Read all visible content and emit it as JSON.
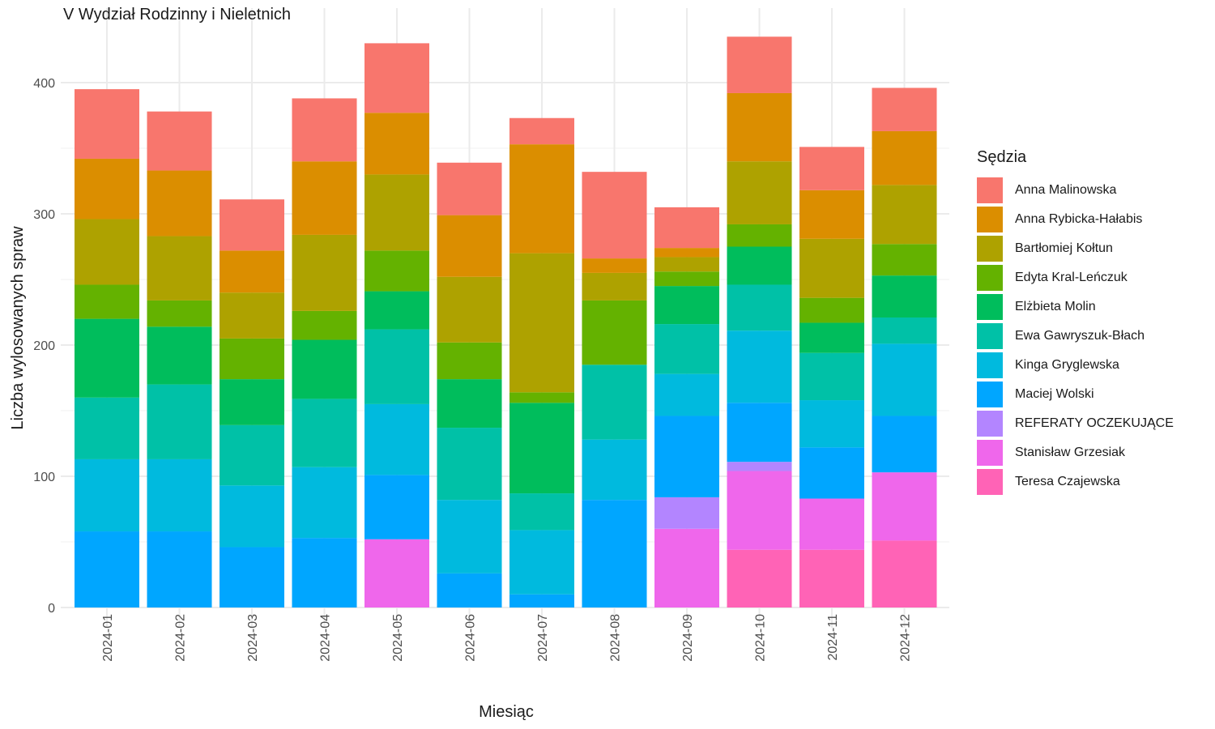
{
  "chart_data": {
    "type": "bar",
    "stacked": true,
    "title": "V Wydział Rodzinny i Nieletnich",
    "xlabel": "Miesiąc",
    "ylabel": "Liczba wylosowanych spraw",
    "ylim": [
      0,
      435
    ],
    "yticks": [
      0,
      100,
      200,
      300,
      400
    ],
    "grid": true,
    "legend_title": "Sędzia",
    "legend_position": "right",
    "categories": [
      "2024-01",
      "2024-02",
      "2024-03",
      "2024-04",
      "2024-05",
      "2024-06",
      "2024-07",
      "2024-08",
      "2024-09",
      "2024-10",
      "2024-11",
      "2024-12"
    ],
    "series": [
      {
        "name": "Anna Malinowska",
        "color": "#F8766D",
        "values": [
          53,
          45,
          39,
          48,
          53,
          40,
          20,
          66,
          31,
          43,
          33,
          33
        ]
      },
      {
        "name": "Anna Rybicka-Hałabis",
        "color": "#DB8E00",
        "values": [
          46,
          50,
          32,
          56,
          47,
          47,
          83,
          11,
          7,
          52,
          37,
          41
        ]
      },
      {
        "name": "Bartłomiej Kołtun",
        "color": "#AEA200",
        "values": [
          50,
          49,
          35,
          58,
          58,
          50,
          106,
          21,
          11,
          48,
          45,
          45
        ]
      },
      {
        "name": "Edyta Kral-Leńczuk",
        "color": "#64B200",
        "values": [
          26,
          20,
          31,
          22,
          31,
          28,
          8,
          49,
          11,
          17,
          19,
          24
        ]
      },
      {
        "name": "Elżbieta Molin",
        "color": "#00BD5C",
        "values": [
          60,
          44,
          35,
          45,
          29,
          37,
          69,
          0,
          29,
          29,
          23,
          32
        ]
      },
      {
        "name": "Ewa Gawryszuk-Błach",
        "color": "#00C1A7",
        "values": [
          47,
          57,
          46,
          52,
          57,
          55,
          28,
          57,
          38,
          35,
          36,
          20
        ]
      },
      {
        "name": "Kinga Gryglewska",
        "color": "#00BADE",
        "values": [
          55,
          55,
          47,
          54,
          54,
          56,
          49,
          46,
          32,
          55,
          36,
          55
        ]
      },
      {
        "name": "Maciej Wolski",
        "color": "#00A6FF",
        "values": [
          58,
          58,
          46,
          53,
          49,
          26,
          10,
          82,
          62,
          45,
          39,
          43
        ]
      },
      {
        "name": "REFERATY OCZEKUJĄCE",
        "color": "#B385FF",
        "values": [
          0,
          0,
          0,
          0,
          0,
          0,
          0,
          0,
          24,
          7,
          0,
          0
        ]
      },
      {
        "name": "Stanisław Grzesiak",
        "color": "#EF67EB",
        "values": [
          0,
          0,
          0,
          0,
          52,
          0,
          0,
          0,
          60,
          60,
          39,
          52
        ]
      },
      {
        "name": "Teresa Czajewska",
        "color": "#FF63B6",
        "values": [
          0,
          0,
          0,
          0,
          0,
          0,
          0,
          0,
          0,
          44,
          44,
          51
        ]
      }
    ]
  }
}
